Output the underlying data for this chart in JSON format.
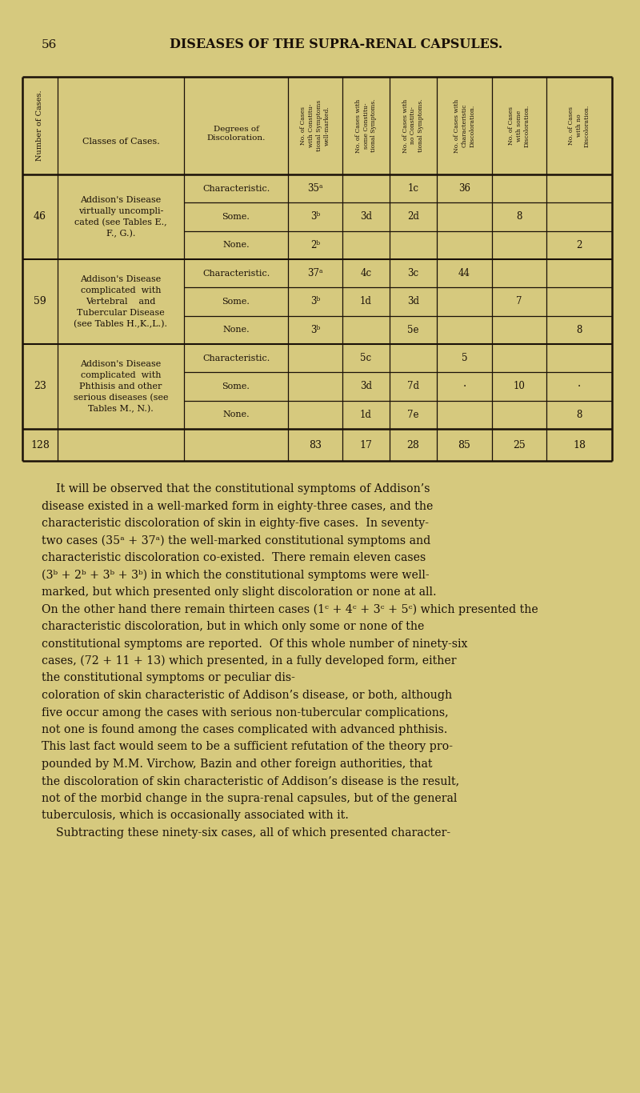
{
  "bg_color": "#d6c97e",
  "text_color": "#1a1008",
  "title": "DISEASES OF THE SUPRA-RENAL CAPSULES.",
  "page_num": "56",
  "table": {
    "rows": [
      {
        "group_num": "46",
        "group_desc_lines": [
          "Addison's Disease",
          "virtually uncompli-",
          "cated (see Tables E.,",
          "F., G.)."
        ],
        "subrows": [
          {
            "degree": "Characteristic.",
            "c1": "35ᵃ",
            "c2": "",
            "c3": "1c",
            "c4": "36",
            "c5": "",
            "c6": ""
          },
          {
            "degree": "Some.",
            "c1": "3ᵇ",
            "c2": "3d",
            "c3": "2d",
            "c4": "",
            "c5": "8",
            "c6": ""
          },
          {
            "degree": "None.",
            "c1": "2ᵇ",
            "c2": "",
            "c3": "",
            "c4": "",
            "c5": "",
            "c6": "2"
          }
        ]
      },
      {
        "group_num": "59",
        "group_desc_lines": [
          "Addison's Disease",
          "complicated  with",
          "Vertebral    and",
          "Tubercular Disease",
          "(see Tables H.,K.,L.)."
        ],
        "subrows": [
          {
            "degree": "Characteristic.",
            "c1": "37ᵃ",
            "c2": "4c",
            "c3": "3c",
            "c4": "44",
            "c5": "",
            "c6": ""
          },
          {
            "degree": "Some.",
            "c1": "3ᵇ",
            "c2": "1d",
            "c3": "3d",
            "c4": "",
            "c5": "7",
            "c6": ""
          },
          {
            "degree": "None.",
            "c1": "3ᵇ",
            "c2": "",
            "c3": "5e",
            "c4": "",
            "c5": "",
            "c6": "8"
          }
        ]
      },
      {
        "group_num": "23",
        "group_desc_lines": [
          "Addison's Disease",
          "complicated  with",
          "Phthisis and other",
          "serious diseases (see",
          "Tables M., N.)."
        ],
        "subrows": [
          {
            "degree": "Characteristic.",
            "c1": "",
            "c2": "5c",
            "c3": "",
            "c4": "5",
            "c5": "",
            "c6": ""
          },
          {
            "degree": "Some.",
            "c1": "",
            "c2": "3d",
            "c3": "7d",
            "c4": "·",
            "c5": "10",
            "c6": "·"
          },
          {
            "degree": "None.",
            "c1": "",
            "c2": "1d",
            "c3": "7e",
            "c4": "",
            "c5": "",
            "c6": "8"
          }
        ]
      }
    ],
    "totals": {
      "num": "128",
      "c1": "83",
      "c2": "17",
      "c3": "28",
      "c4": "85",
      "c5": "25",
      "c6": "18"
    }
  },
  "body_text_lines": [
    "    It will be observed that the constitutional symptoms of Addison’s",
    "disease existed in a well-marked form in eighty-three cases, and the",
    "characteristic discoloration of skin in eighty-five cases.  In seventy-",
    "two cases (35ᵃ + 37ᵃ) the well-marked constitutional symptoms and",
    "characteristic discoloration co-existed.  There remain eleven cases",
    "(3ᵇ + 2ᵇ + 3ᵇ + 3ᵇ) in which the constitutional symptoms were well-",
    "marked, but which presented only slight discoloration or none at all.",
    "On the other hand there remain thirteen cases (1ᶜ + 4ᶜ + 3ᶜ + 5ᶜ) which presented the",
    "characteristic discoloration, but in which only some or none of the",
    "constitutional symptoms are reported.  Of this whole number of ninety-six",
    "cases, (72 + 11 + 13) which presented, in a fully developed form, either",
    "the constitutional symptoms or peculiar dis-",
    "coloration of skin characteristic of Addison’s disease, or both, although",
    "five occur among the cases with serious non-tubercular complications,",
    "not one is found among the cases complicated with advanced phthisis.",
    "This last fact would seem to be a sufficient refutation of the theory pro-",
    "pounded by M.M. Virchow, Bazin and other foreign authorities, that",
    "the discoloration of skin characteristic of Addison’s disease is the result,",
    "not of the morbid change in the supra-renal capsules, but of the general",
    "tuberculosis, which is occasionally associated with it.",
    "    Subtracting these ninety-six cases, all of which presented character-"
  ]
}
